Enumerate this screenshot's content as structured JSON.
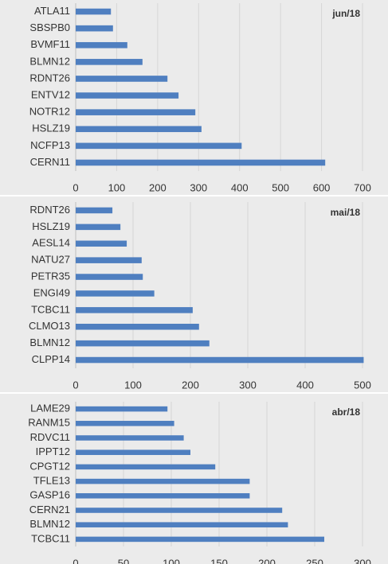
{
  "chart_data": [
    {
      "type": "bar",
      "orientation": "horizontal",
      "annotation": "jun/18",
      "categories": [
        "ATLA11",
        "SBSPB0",
        "BVMF11",
        "BLMN12",
        "RDNT26",
        "ENTV12",
        "NOTR12",
        "HSLZ19",
        "NCFP13",
        "CERN11"
      ],
      "values": [
        86,
        91,
        126,
        163,
        224,
        251,
        292,
        307,
        405,
        609
      ],
      "color": "#4f7fc0",
      "xlim": [
        0,
        700
      ],
      "xticks": [
        0,
        100,
        200,
        300,
        400,
        500,
        600,
        700
      ],
      "grid": true
    },
    {
      "type": "bar",
      "orientation": "horizontal",
      "annotation": "mai/18",
      "categories": [
        "RDNT26",
        "HSLZ19",
        "AESL14",
        "NATU27",
        "PETR35",
        "ENGI49",
        "TCBC11",
        "CLMO13",
        "BLMN12",
        "CLPP14"
      ],
      "values": [
        64,
        78,
        89,
        115,
        117,
        137,
        204,
        215,
        233,
        502
      ],
      "color": "#4f7fc0",
      "xlim": [
        0,
        500
      ],
      "xticks": [
        0,
        100,
        200,
        300,
        400,
        500
      ],
      "grid": true
    },
    {
      "type": "bar",
      "orientation": "horizontal",
      "annotation": "abr/18",
      "categories": [
        "LAME29",
        "RANM15",
        "RDVC11",
        "IPPT12",
        "CPGT12",
        "TFLE13",
        "GASP16",
        "CERN21",
        "BLMN12",
        "TCBC11"
      ],
      "values": [
        96,
        103,
        113,
        120,
        146,
        182,
        182,
        216,
        222,
        260
      ],
      "color": "#4f7fc0",
      "xlim": [
        0,
        300
      ],
      "xticks": [
        0,
        50,
        100,
        150,
        200,
        250,
        300
      ],
      "grid": true
    }
  ]
}
